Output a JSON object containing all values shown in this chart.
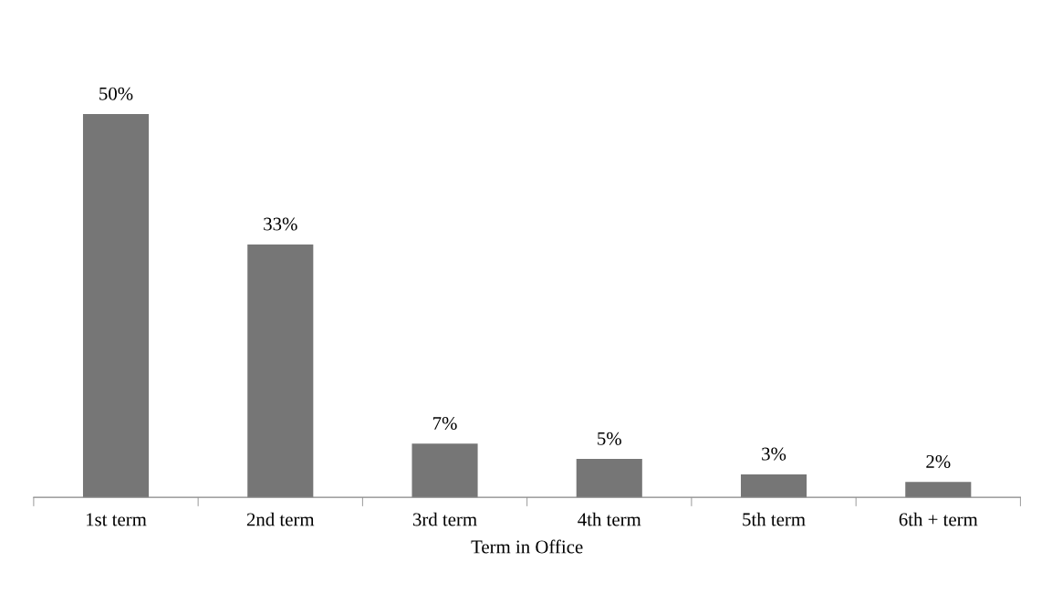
{
  "chart_data": {
    "type": "bar",
    "xlabel": "Term in Office",
    "categories": [
      "1st term",
      "2nd term",
      "3rd term",
      "4th term",
      "5th term",
      "6th + term"
    ],
    "values": [
      50,
      33,
      7,
      5,
      3,
      2
    ],
    "value_labels": [
      "50%",
      "33%",
      "7%",
      "5%",
      "3%",
      "2%"
    ],
    "color": "#767676",
    "grid": false,
    "legend": false
  }
}
